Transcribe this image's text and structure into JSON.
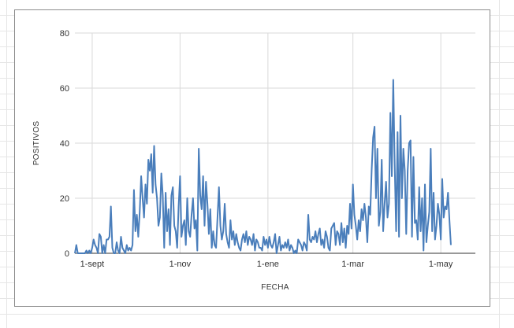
{
  "chart_data": {
    "type": "line",
    "title": "",
    "xlabel": "FECHA",
    "ylabel": "POSITIVOS",
    "ylim": [
      0,
      80
    ],
    "yticks": [
      0,
      20,
      40,
      60,
      80
    ],
    "xlim": [
      "2020-08-20",
      "2021-05-25"
    ],
    "xticks": [
      {
        "date": "2020-09-01",
        "label": "1-sept"
      },
      {
        "date": "2020-11-01",
        "label": "1-nov"
      },
      {
        "date": "2021-01-01",
        "label": "1-ene"
      },
      {
        "date": "2021-03-01",
        "label": "1-mar"
      },
      {
        "date": "2021-05-01",
        "label": "1-may"
      }
    ],
    "grid": "vertical-and-horizontal",
    "legend": "none",
    "series_color": "#4a7ebb",
    "series": [
      {
        "start_date": "2020-08-20",
        "values": [
          0,
          3,
          0,
          0,
          0,
          0,
          0,
          0,
          1,
          0,
          1,
          0,
          2,
          5,
          3,
          2,
          0,
          7,
          6,
          0,
          3,
          0,
          5,
          5,
          6,
          17,
          2,
          0,
          0,
          4,
          1,
          0,
          6,
          2,
          1,
          0,
          3,
          1,
          2,
          1,
          3,
          23,
          8,
          14,
          6,
          15,
          28,
          20,
          13,
          25,
          18,
          34,
          30,
          36,
          22,
          39,
          25,
          20,
          10,
          13,
          29,
          21,
          2,
          22,
          8,
          16,
          3,
          21,
          24,
          10,
          8,
          2,
          17,
          28,
          6,
          10,
          12,
          3,
          20,
          8,
          6,
          14,
          20,
          9,
          12,
          1,
          38,
          21,
          16,
          28,
          10,
          26,
          18,
          7,
          16,
          2,
          8,
          3,
          2,
          13,
          24,
          10,
          5,
          8,
          18,
          7,
          4,
          2,
          12,
          5,
          8,
          3,
          7,
          4,
          2,
          1,
          5,
          7,
          4,
          8,
          3,
          6,
          5,
          3,
          7,
          1,
          5,
          4,
          2,
          2,
          1,
          6,
          3,
          5,
          2,
          6,
          3,
          2,
          4,
          7,
          0,
          3,
          6,
          1,
          3,
          2,
          4,
          2,
          5,
          1,
          3,
          2,
          0,
          1,
          0,
          5,
          4,
          3,
          1,
          4,
          3,
          1,
          14,
          5,
          4,
          6,
          5,
          8,
          4,
          7,
          9,
          3,
          5,
          2,
          8,
          6,
          2,
          1,
          9,
          10,
          11,
          3,
          8,
          7,
          3,
          11,
          4,
          9,
          2,
          10,
          7,
          18,
          9,
          25,
          14,
          10,
          5,
          12,
          8,
          16,
          12,
          18,
          13,
          4,
          17,
          14,
          30,
          42,
          46,
          20,
          38,
          10,
          15,
          34,
          8,
          18,
          26,
          13,
          18,
          51,
          28,
          63,
          32,
          8,
          44,
          6,
          50,
          20,
          38,
          30,
          7,
          30,
          40,
          41,
          6,
          35,
          11,
          12,
          5,
          24,
          8,
          20,
          1,
          25,
          4,
          10,
          15,
          38,
          8,
          22,
          5,
          10,
          18,
          14,
          5,
          27,
          13,
          17,
          16,
          22,
          12,
          3
        ]
      }
    ]
  }
}
